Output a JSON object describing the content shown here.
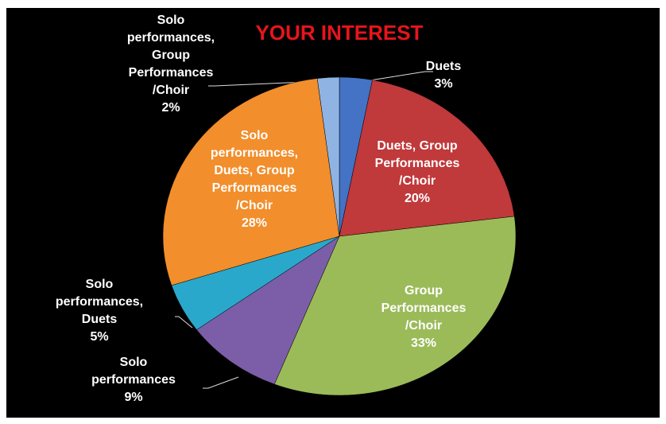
{
  "chart_data": {
    "type": "pie",
    "title": "YOUR INTEREST",
    "categories": [
      "Duets",
      "Duets, Group Performances /Choir",
      "Group Performances /Choir",
      "Solo performances",
      "Solo performances, Duets",
      "Solo performances, Duets, Group Performances /Choir",
      "Solo performances, Group Performances /Choir"
    ],
    "values": [
      3,
      20,
      33,
      9,
      5,
      28,
      2
    ],
    "value_labels": [
      "3%",
      "20%",
      "33%",
      "9%",
      "5%",
      "28%",
      "2%"
    ],
    "colors": [
      "#4472c4",
      "#c0393b",
      "#9bbb59",
      "#7b5ea7",
      "#2aa8cc",
      "#f28e2b",
      "#8fb4e3"
    ]
  }
}
